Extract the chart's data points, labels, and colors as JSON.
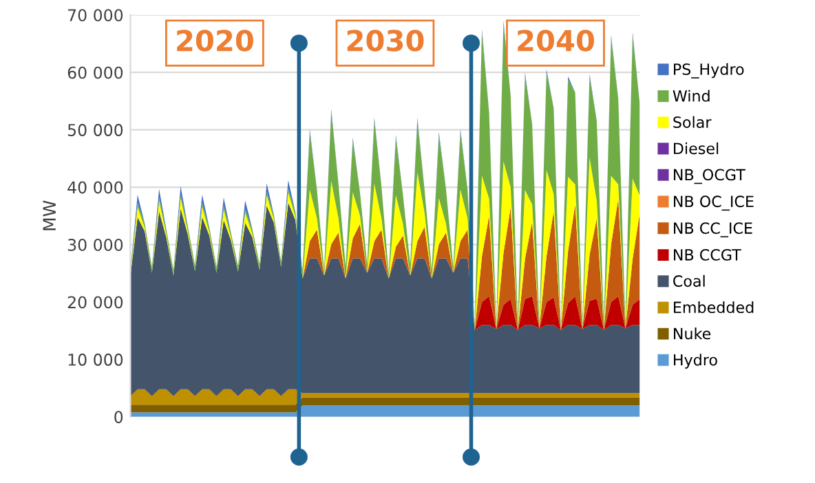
{
  "chart_data": {
    "type": "area",
    "stacked": true,
    "ylabel": "MW",
    "annotations": [
      "2020",
      "2030",
      "2040"
    ],
    "categories": [
      null,
      null,
      null,
      null,
      null,
      null,
      null,
      null,
      null,
      null,
      null,
      null,
      null,
      null,
      null,
      null,
      null,
      null,
      null,
      null,
      null,
      null,
      null,
      null,
      null,
      null,
      null,
      null,
      null,
      null,
      null,
      null,
      null,
      null,
      null,
      null,
      null,
      null,
      null,
      null,
      null,
      null,
      null,
      null,
      null,
      null,
      null,
      null,
      null,
      null,
      null,
      null,
      null,
      null,
      null,
      null,
      null,
      null,
      null,
      null,
      null,
      null,
      null,
      null,
      null,
      null,
      null,
      null,
      null,
      null,
      null,
      null
    ],
    "ylim": [
      0,
      70000
    ],
    "yticks": [
      {
        "value": 0,
        "label": "0"
      },
      {
        "value": 10000,
        "label": "10 000"
      },
      {
        "value": 20000,
        "label": "20 000"
      },
      {
        "value": 30000,
        "label": "30 000"
      },
      {
        "value": 40000,
        "label": "40 000"
      },
      {
        "value": 50000,
        "label": "50 000"
      },
      {
        "value": 60000,
        "label": "60 000"
      },
      {
        "value": 70000,
        "label": "70 000"
      }
    ],
    "grid": "y",
    "legend": "right",
    "tick_labels": "y",
    "series": [
      {
        "name": "Hydro",
        "color": "#5b9bd5",
        "values": [
          800,
          800,
          800,
          800,
          800,
          800,
          800,
          800,
          800,
          800,
          800,
          800,
          800,
          800,
          800,
          800,
          800,
          800,
          800,
          800,
          800,
          800,
          800,
          800,
          2000,
          2000,
          2000,
          2000,
          2000,
          2000,
          2000,
          2000,
          2000,
          2000,
          2000,
          2000,
          2000,
          2000,
          2000,
          2000,
          2000,
          2000,
          2000,
          2000,
          2000,
          2000,
          2000,
          2000,
          2000,
          2000,
          2000,
          2000,
          2000,
          2000,
          2000,
          2000,
          2000,
          2000,
          2000,
          2000,
          2000,
          2000,
          2000,
          2000,
          2000,
          2000,
          2000,
          2000,
          2000,
          2000,
          2000,
          2000
        ]
      },
      {
        "name": "Nuke",
        "color": "#7f5f00",
        "values": [
          1300,
          1300,
          1300,
          1300,
          1300,
          1300,
          1300,
          1300,
          1300,
          1300,
          1300,
          1300,
          1300,
          1300,
          1300,
          1300,
          1300,
          1300,
          1300,
          1300,
          1300,
          1300,
          1300,
          1300,
          1400,
          1400,
          1400,
          1400,
          1400,
          1400,
          1400,
          1400,
          1400,
          1400,
          1400,
          1400,
          1400,
          1400,
          1400,
          1400,
          1400,
          1400,
          1400,
          1400,
          1400,
          1400,
          1400,
          1400,
          1400,
          1400,
          1400,
          1400,
          1400,
          1400,
          1400,
          1400,
          1400,
          1400,
          1400,
          1400,
          1400,
          1400,
          1400,
          1400,
          1400,
          1400,
          1400,
          1400,
          1400,
          1400,
          1400,
          1400
        ]
      },
      {
        "name": "Embedded",
        "color": "#bf9000",
        "values": [
          1500,
          2700,
          2700,
          1500,
          2700,
          2700,
          1500,
          2700,
          2700,
          1500,
          2700,
          2700,
          1500,
          2700,
          2700,
          1500,
          2700,
          2700,
          1500,
          2700,
          2700,
          1500,
          2700,
          2700,
          700,
          700,
          700,
          700,
          700,
          700,
          700,
          700,
          700,
          700,
          700,
          700,
          700,
          700,
          700,
          700,
          700,
          700,
          700,
          700,
          700,
          700,
          700,
          700,
          700,
          700,
          700,
          700,
          700,
          700,
          700,
          700,
          700,
          700,
          700,
          700,
          700,
          700,
          700,
          700,
          700,
          700,
          700,
          700,
          700,
          700,
          700,
          700
        ]
      },
      {
        "name": "Coal",
        "color": "#44546a",
        "values": [
          21000,
          30000,
          27500,
          21500,
          31000,
          26500,
          21000,
          31500,
          27000,
          21800,
          30000,
          26800,
          21500,
          29500,
          26000,
          21700,
          29000,
          26500,
          22000,
          32000,
          29000,
          22500,
          32500,
          29500,
          20000,
          23500,
          23500,
          20500,
          23500,
          23500,
          20000,
          23500,
          23500,
          21000,
          23500,
          23500,
          20000,
          23500,
          23500,
          20500,
          23500,
          23500,
          20000,
          23500,
          23500,
          21000,
          23500,
          23500,
          11000,
          11900,
          11900,
          11200,
          11900,
          11900,
          11000,
          11900,
          11900,
          11300,
          11900,
          11900,
          11000,
          11900,
          11900,
          11200,
          11900,
          11900,
          11000,
          11900,
          11900,
          11300,
          11900,
          11900
        ]
      },
      {
        "name": "NB CCGT",
        "color": "#c00000",
        "values": [
          0,
          0,
          0,
          0,
          0,
          0,
          0,
          0,
          0,
          0,
          0,
          0,
          0,
          0,
          0,
          0,
          0,
          0,
          0,
          0,
          0,
          0,
          0,
          0,
          0,
          0,
          0,
          0,
          0,
          0,
          0,
          0,
          0,
          0,
          0,
          0,
          0,
          0,
          0,
          0,
          0,
          0,
          0,
          0,
          0,
          0,
          0,
          0,
          0,
          4000,
          5000,
          0,
          3500,
          4500,
          0,
          4500,
          5000,
          0,
          4000,
          4800,
          0,
          3800,
          5000,
          0,
          4200,
          4600,
          0,
          4000,
          5000,
          0,
          3500,
          4500
        ]
      },
      {
        "name": "NB CC_ICE",
        "color": "#c55a11",
        "values": [
          0,
          0,
          0,
          0,
          0,
          0,
          0,
          0,
          0,
          0,
          0,
          0,
          0,
          0,
          0,
          0,
          0,
          0,
          0,
          0,
          0,
          0,
          0,
          0,
          0,
          3000,
          5000,
          0,
          2500,
          4500,
          0,
          3500,
          6000,
          0,
          3000,
          5000,
          0,
          2000,
          4000,
          0,
          3000,
          5500,
          0,
          2500,
          4500,
          0,
          3000,
          5000,
          0,
          8000,
          14000,
          0,
          9000,
          16000,
          0,
          7000,
          13000,
          0,
          8000,
          15000,
          0,
          9000,
          16000,
          0,
          8000,
          14000,
          0,
          10000,
          17000,
          0,
          8000,
          15000
        ]
      },
      {
        "name": "NB OC_ICE",
        "color": "#ed7d31",
        "values": [
          null,
          null,
          null,
          null,
          null,
          null,
          null,
          null,
          null,
          null,
          null,
          null,
          null,
          null,
          null,
          null,
          null,
          null,
          null,
          null,
          null,
          null,
          null,
          null,
          null,
          null,
          null,
          null,
          null,
          null,
          null,
          null,
          null,
          null,
          null,
          null,
          null,
          null,
          null,
          null,
          null,
          null,
          null,
          null,
          null,
          null,
          null,
          null,
          null,
          null,
          null,
          null,
          null,
          null,
          null,
          null,
          null,
          null,
          null,
          null,
          null,
          null,
          null,
          null,
          null,
          null,
          null,
          null,
          null,
          null,
          null,
          null
        ]
      },
      {
        "name": "NB_OCGT",
        "color": "#7030a0",
        "values": [
          null,
          null,
          null,
          null,
          null,
          null,
          null,
          null,
          null,
          null,
          null,
          null,
          null,
          null,
          null,
          null,
          null,
          null,
          null,
          null,
          null,
          null,
          null,
          null,
          null,
          null,
          null,
          null,
          null,
          null,
          null,
          null,
          null,
          null,
          null,
          null,
          null,
          null,
          null,
          null,
          null,
          null,
          null,
          null,
          null,
          null,
          null,
          null,
          null,
          null,
          null,
          null,
          null,
          null,
          null,
          null,
          null,
          null,
          null,
          null,
          null,
          null,
          null,
          null,
          null,
          null,
          null,
          null,
          null,
          null,
          null,
          null
        ]
      },
      {
        "name": "Diesel",
        "color": "#7030a0",
        "values": [
          null,
          null,
          null,
          null,
          null,
          null,
          null,
          null,
          null,
          null,
          null,
          null,
          null,
          null,
          null,
          null,
          null,
          null,
          null,
          null,
          null,
          null,
          null,
          null,
          null,
          null,
          null,
          null,
          null,
          null,
          null,
          null,
          null,
          null,
          null,
          null,
          null,
          null,
          null,
          null,
          null,
          null,
          null,
          null,
          null,
          null,
          null,
          null,
          null,
          null,
          null,
          null,
          null,
          null,
          null,
          null,
          null,
          null,
          null,
          null,
          null,
          null,
          null,
          null,
          null,
          null,
          null,
          null,
          null,
          null,
          null,
          null
        ]
      },
      {
        "name": "Solar",
        "color": "#ffff00",
        "values": [
          0,
          1800,
          600,
          0,
          1800,
          600,
          0,
          1800,
          600,
          0,
          1800,
          600,
          0,
          1800,
          600,
          0,
          1800,
          600,
          0,
          1800,
          600,
          0,
          1800,
          600,
          0,
          9000,
          2000,
          0,
          11000,
          2500,
          0,
          8000,
          1500,
          0,
          10000,
          2000,
          0,
          9000,
          2000,
          0,
          12000,
          2500,
          0,
          8000,
          1500,
          0,
          9000,
          2000,
          0,
          14000,
          3000,
          0,
          16000,
          3500,
          0,
          12000,
          3000,
          0,
          15000,
          3000,
          0,
          13000,
          3500,
          0,
          17000,
          3000,
          0,
          12000,
          2500,
          0,
          14000,
          3000
        ]
      },
      {
        "name": "Wind",
        "color": "#70ad47",
        "values": [
          1000,
          600,
          800,
          1000,
          600,
          800,
          1000,
          600,
          800,
          1000,
          600,
          800,
          1000,
          600,
          800,
          1000,
          600,
          800,
          1000,
          600,
          800,
          1000,
          600,
          800,
          1500,
          10000,
          5000,
          1000,
          12000,
          6000,
          2000,
          9000,
          4000,
          1500,
          11000,
          5500,
          1000,
          10000,
          5000,
          2000,
          9000,
          4000,
          1500,
          11000,
          6000,
          1000,
          10000,
          5000,
          1000,
          25000,
          15000,
          500,
          24000,
          16000,
          1500,
          20000,
          14000,
          1000,
          17000,
          15000,
          500,
          17000,
          16000,
          1000,
          14000,
          14000,
          1500,
          24000,
          15000,
          1000,
          25000,
          16000
        ]
      },
      {
        "name": "PS_Hydro",
        "color": "#4472c4",
        "values": [
          0,
          1500,
          0,
          0,
          1500,
          0,
          0,
          1500,
          0,
          0,
          1500,
          0,
          0,
          1500,
          0,
          0,
          1500,
          0,
          0,
          1500,
          0,
          0,
          1500,
          0,
          0,
          500,
          0,
          0,
          500,
          0,
          0,
          500,
          0,
          0,
          500,
          0,
          0,
          500,
          0,
          0,
          500,
          0,
          0,
          500,
          0,
          0,
          500,
          0,
          0,
          500,
          0,
          0,
          500,
          0,
          0,
          500,
          0,
          0,
          500,
          0,
          0,
          500,
          0,
          0,
          500,
          0,
          0,
          500,
          0,
          0,
          500,
          0
        ]
      }
    ]
  }
}
